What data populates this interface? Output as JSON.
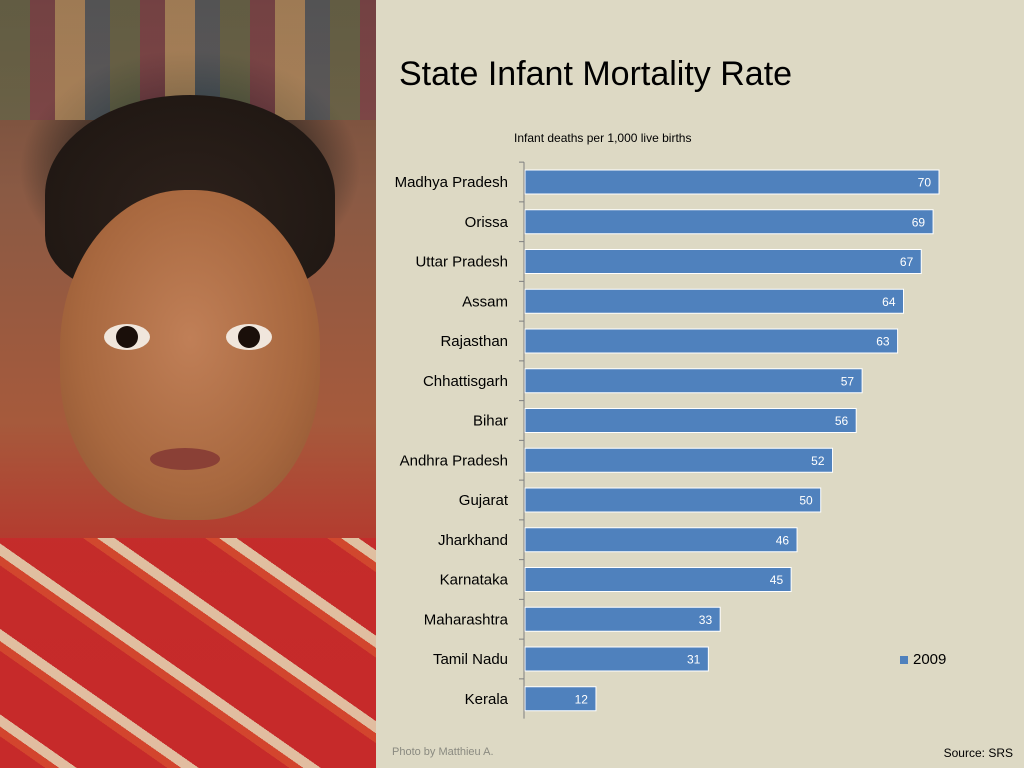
{
  "title": "State Infant Mortality Rate",
  "photo_credit": "Photo by Matthieu A.",
  "source": "Source: SRS",
  "colors": {
    "background": "#ddd9c4",
    "bar": "#4f81bd",
    "bar_label": "#ffffff"
  },
  "chart_data": {
    "type": "bar",
    "orientation": "horizontal",
    "subtitle": "Infant deaths per 1,000 live births",
    "categories": [
      "Madhya Pradesh",
      "Orissa",
      "Uttar Pradesh",
      "Assam",
      "Rajasthan",
      "Chhattisgarh",
      "Bihar",
      "Andhra Pradesh",
      "Gujarat",
      "Jharkhand",
      "Karnataka",
      "Maharashtra",
      "Tamil Nadu",
      "Kerala"
    ],
    "series": [
      {
        "name": "2009",
        "values": [
          70,
          69,
          67,
          64,
          63,
          57,
          56,
          52,
          50,
          46,
          45,
          33,
          31,
          12
        ]
      }
    ],
    "xlim": [
      0,
      70
    ],
    "data_labels": true,
    "grid": false,
    "legend": "bottom-right",
    "xlabel": "",
    "ylabel": ""
  }
}
